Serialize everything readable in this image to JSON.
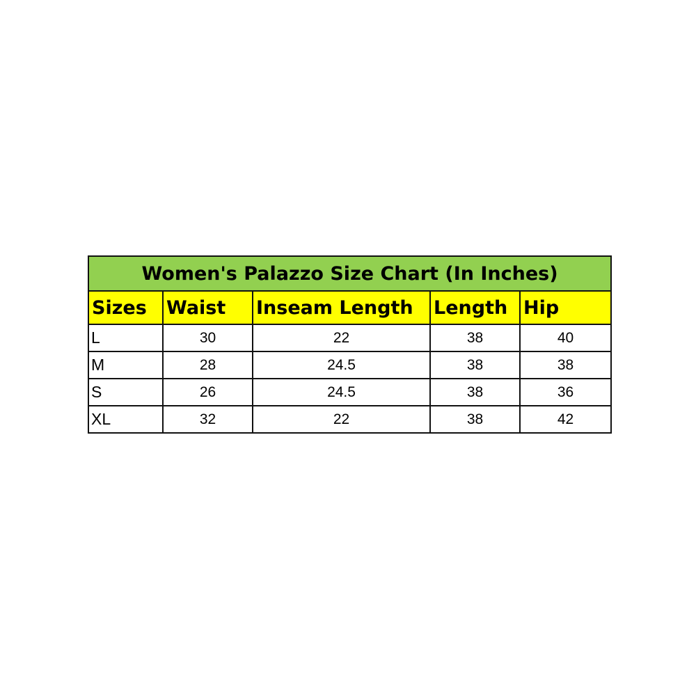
{
  "title": "Women's Palazzo Size Chart (In Inches)",
  "colors": {
    "title_bg": "#92d050",
    "header_bg": "#ffff00"
  },
  "headers": [
    "Sizes",
    "Waist",
    "Inseam Length",
    "Length",
    "Hip"
  ],
  "rows": [
    [
      "L",
      "30",
      "22",
      "38",
      "40"
    ],
    [
      "M",
      "28",
      "24.5",
      "38",
      "38"
    ],
    [
      "S",
      "26",
      "24.5",
      "38",
      "36"
    ],
    [
      "XL",
      "32",
      "22",
      "38",
      "42"
    ]
  ]
}
